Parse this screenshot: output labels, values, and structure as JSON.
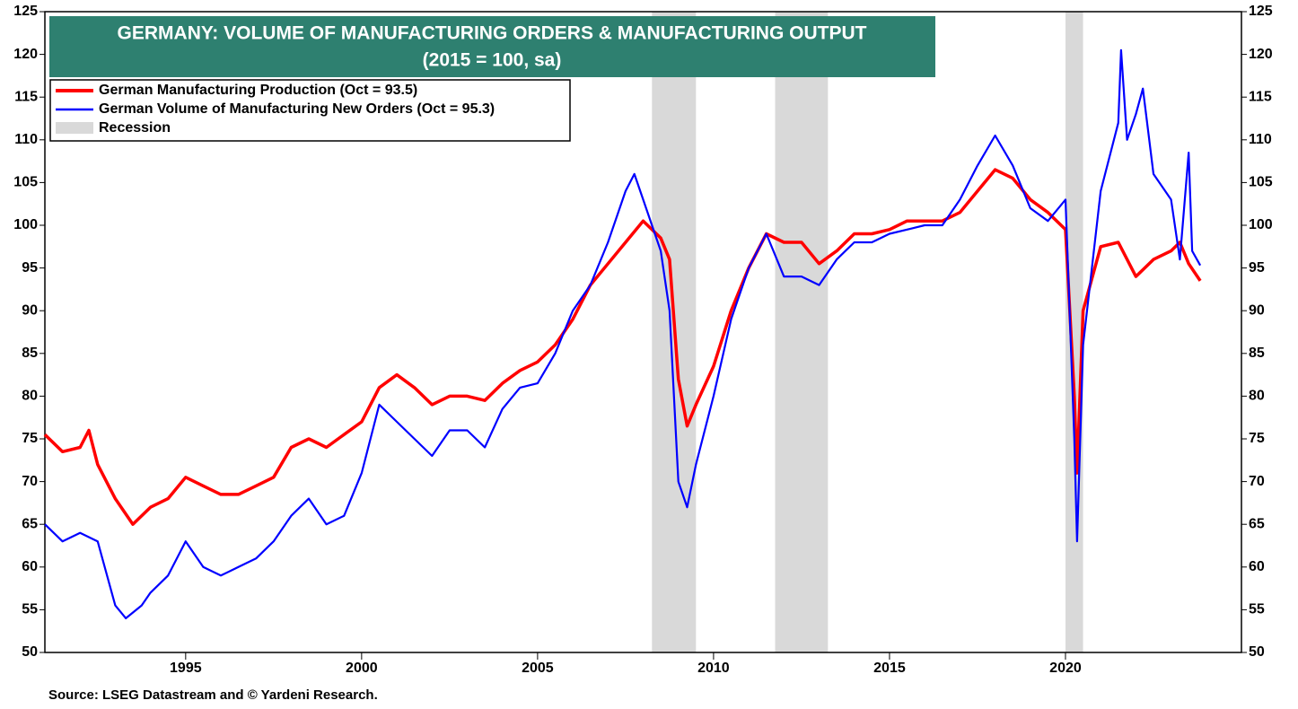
{
  "chart_data": {
    "type": "line",
    "title": "GERMANY: VOLUME OF MANUFACTURING ORDERS & MANUFACTURING OUTPUT",
    "subtitle": "(2015 = 100, sa)",
    "source": "Source: LSEG Datastream and © Yardeni Research.",
    "xlim": [
      1991,
      2025
    ],
    "xticks": [
      1995,
      2000,
      2005,
      2010,
      2015,
      2020
    ],
    "ylim": [
      50,
      125
    ],
    "yticks": [
      50,
      55,
      60,
      65,
      70,
      75,
      80,
      85,
      90,
      95,
      100,
      105,
      110,
      115,
      120,
      125
    ],
    "y2lim": [
      50,
      125
    ],
    "y2ticks": [
      50,
      55,
      60,
      65,
      70,
      75,
      80,
      85,
      90,
      95,
      100,
      105,
      110,
      115,
      120,
      125
    ],
    "recession_label": "Recession",
    "recession_color": "#d9d9d9",
    "recessions": [
      [
        2008.25,
        2009.5
      ],
      [
        2011.75,
        2013.25
      ],
      [
        2020.0,
        2020.5
      ]
    ],
    "series": [
      {
        "name": "German Manufacturing Production (Oct = 93.5)",
        "color": "#ff0000",
        "x": [
          1991.0,
          1991.5,
          1992.0,
          1992.25,
          1992.5,
          1993.0,
          1993.5,
          1994.0,
          1994.5,
          1995.0,
          1995.5,
          1996.0,
          1996.5,
          1997.0,
          1997.5,
          1998.0,
          1998.5,
          1999.0,
          1999.5,
          2000.0,
          2000.5,
          2001.0,
          2001.5,
          2002.0,
          2002.5,
          2003.0,
          2003.5,
          2004.0,
          2004.5,
          2005.0,
          2005.5,
          2006.0,
          2006.5,
          2007.0,
          2007.5,
          2008.0,
          2008.5,
          2008.75,
          2009.0,
          2009.25,
          2009.5,
          2010.0,
          2010.5,
          2011.0,
          2011.5,
          2012.0,
          2012.5,
          2013.0,
          2013.5,
          2014.0,
          2014.5,
          2015.0,
          2015.5,
          2016.0,
          2016.5,
          2017.0,
          2017.5,
          2018.0,
          2018.5,
          2019.0,
          2019.5,
          2020.0,
          2020.25,
          2020.33,
          2020.5,
          2021.0,
          2021.5,
          2022.0,
          2022.5,
          2023.0,
          2023.25,
          2023.5,
          2023.83
        ],
        "values": [
          75.5,
          73.5,
          74,
          76,
          72,
          68,
          65,
          67,
          68,
          70.5,
          69.5,
          68.5,
          68.5,
          69.5,
          70.5,
          74,
          75,
          74,
          75.5,
          77,
          81,
          82.5,
          81,
          79,
          80,
          80,
          79.5,
          81.5,
          83,
          84,
          86,
          89,
          93,
          95.5,
          98,
          100.5,
          98.5,
          96,
          82,
          76.5,
          79,
          83.5,
          90,
          95,
          99,
          98,
          98,
          95.5,
          97,
          99,
          99,
          99.5,
          100.5,
          100.5,
          100.5,
          101.5,
          104,
          106.5,
          105.5,
          103,
          101.5,
          99.5,
          80,
          71,
          90,
          97.5,
          98,
          94,
          96,
          97,
          98,
          95.5,
          93.5
        ]
      },
      {
        "name": "German Volume of Manufacturing New Orders (Oct = 95.3)",
        "color": "#0000ff",
        "x": [
          1991.0,
          1991.5,
          1992.0,
          1992.5,
          1993.0,
          1993.3,
          1993.75,
          1994.0,
          1994.5,
          1995.0,
          1995.5,
          1996.0,
          1996.5,
          1997.0,
          1997.5,
          1998.0,
          1998.5,
          1999.0,
          1999.5,
          2000.0,
          2000.5,
          2001.0,
          2001.5,
          2002.0,
          2002.5,
          2003.0,
          2003.5,
          2004.0,
          2004.5,
          2005.0,
          2005.5,
          2006.0,
          2006.5,
          2007.0,
          2007.5,
          2007.75,
          2008.0,
          2008.5,
          2008.75,
          2009.0,
          2009.25,
          2009.5,
          2010.0,
          2010.5,
          2011.0,
          2011.5,
          2012.0,
          2012.5,
          2013.0,
          2013.5,
          2014.0,
          2014.5,
          2015.0,
          2015.5,
          2016.0,
          2016.5,
          2017.0,
          2017.5,
          2018.0,
          2018.5,
          2019.0,
          2019.5,
          2020.0,
          2020.25,
          2020.33,
          2020.5,
          2021.0,
          2021.5,
          2021.58,
          2021.75,
          2022.0,
          2022.2,
          2022.5,
          2023.0,
          2023.25,
          2023.5,
          2023.6,
          2023.83
        ],
        "values": [
          65,
          63,
          64,
          63,
          55.5,
          54,
          55.5,
          57,
          59,
          63,
          60,
          59,
          60,
          61,
          63,
          66,
          68,
          65,
          66,
          71,
          79,
          77,
          75,
          73,
          76,
          76,
          74,
          78.5,
          81,
          81.5,
          85,
          90,
          93,
          98,
          104,
          106,
          103,
          97,
          90,
          70,
          67,
          72,
          80,
          89,
          95,
          99,
          94,
          94,
          93,
          96,
          98,
          98,
          99,
          99.5,
          100,
          100,
          103,
          107,
          110.5,
          107,
          102,
          100.5,
          103,
          75,
          63,
          86,
          104,
          112,
          120.5,
          110,
          113,
          116,
          106,
          103,
          96,
          108.5,
          97,
          95.3
        ]
      }
    ]
  }
}
